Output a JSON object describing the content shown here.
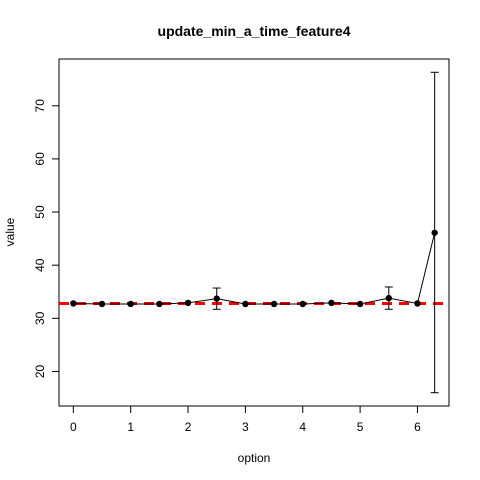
{
  "chart_data": {
    "type": "line",
    "title": "update_min_a_time_feature4",
    "xlabel": "option",
    "ylabel": "value",
    "xlim": [
      -0.25,
      6.55
    ],
    "ylim": [
      13.5,
      78.8
    ],
    "x_ticks": [
      0,
      1,
      2,
      3,
      4,
      5,
      6
    ],
    "y_ticks": [
      20,
      30,
      40,
      50,
      60,
      70
    ],
    "grid": false,
    "series": [
      {
        "x": [
          0,
          0.5,
          1,
          1.5,
          2,
          2.5,
          3,
          3.5,
          4,
          4.5,
          5,
          5.5,
          6,
          6.3
        ],
        "y": [
          32.8,
          32.7,
          32.7,
          32.7,
          32.9,
          33.7,
          32.7,
          32.7,
          32.7,
          32.9,
          32.7,
          33.8,
          32.8,
          46.1
        ],
        "err_low": [
          32.8,
          32.7,
          32.7,
          32.7,
          32.9,
          31.7,
          32.7,
          32.7,
          32.7,
          32.9,
          32.7,
          31.7,
          32.8,
          16.0
        ],
        "err_high": [
          32.8,
          32.7,
          32.7,
          32.7,
          32.9,
          35.7,
          32.7,
          32.7,
          32.7,
          32.9,
          32.7,
          35.9,
          32.8,
          76.3
        ],
        "color": "#000000"
      }
    ],
    "reference_line": {
      "y": 32.8,
      "color": "#ff0000",
      "style": "dashed"
    }
  }
}
